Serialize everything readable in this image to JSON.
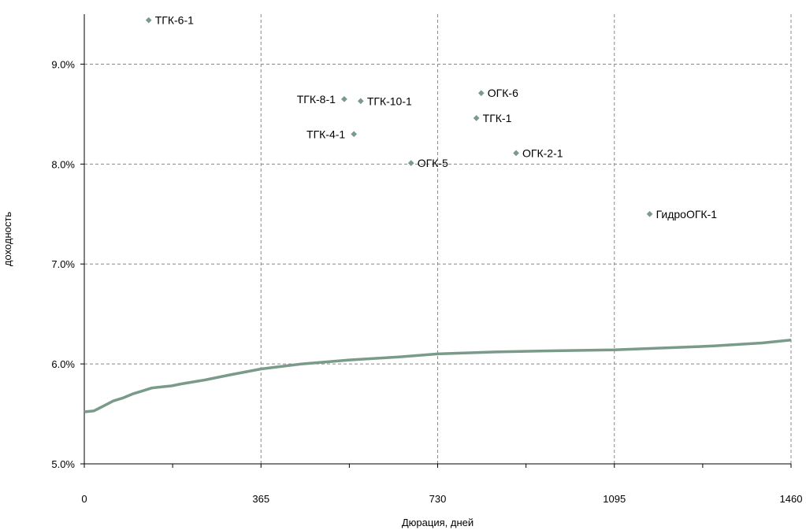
{
  "chart_data": {
    "type": "scatter",
    "title": "",
    "xlabel": "Дюрация, дней",
    "ylabel": "доходность",
    "xlim": [
      0,
      1460
    ],
    "ylim": [
      0.05,
      0.095
    ],
    "x_ticks": [
      0,
      365,
      730,
      1095,
      1460
    ],
    "x_tick_labels": [
      "0",
      "365",
      "730",
      "1095",
      "1460"
    ],
    "y_ticks": [
      0.05,
      0.06,
      0.07,
      0.08,
      0.09
    ],
    "y_tick_labels": [
      "5.0%",
      "6.0%",
      "7.0%",
      "8.0%",
      "9.0%"
    ],
    "grid": true,
    "grid_style": "dashed",
    "colors": {
      "marker": "#7a9a8a",
      "curve": "#7a9a8a",
      "grid": "#888888",
      "axis": "#000000"
    },
    "points": [
      {
        "label": "ТГК-6-1",
        "x": 133,
        "y": 0.0944,
        "label_side": "right"
      },
      {
        "label": "ТГК-8-1",
        "x": 537,
        "y": 0.0865,
        "label_side": "left"
      },
      {
        "label": "ТГК-10-1",
        "x": 571,
        "y": 0.0863,
        "label_side": "right"
      },
      {
        "label": "ТГК-4-1",
        "x": 557,
        "y": 0.083,
        "label_side": "left"
      },
      {
        "label": "ОГК-6",
        "x": 820,
        "y": 0.0871,
        "label_side": "right"
      },
      {
        "label": "ТГК-1",
        "x": 810,
        "y": 0.0846,
        "label_side": "right"
      },
      {
        "label": "ОГК-5",
        "x": 675,
        "y": 0.0801,
        "label_side": "right"
      },
      {
        "label": "ОГК-2-1",
        "x": 892,
        "y": 0.0811,
        "label_side": "right"
      },
      {
        "label": "ГидроОГК-1",
        "x": 1168,
        "y": 0.075,
        "label_side": "right"
      }
    ],
    "curve": {
      "x": [
        0,
        20,
        40,
        60,
        80,
        100,
        120,
        140,
        160,
        180,
        200,
        250,
        300,
        365,
        450,
        550,
        650,
        730,
        850,
        950,
        1095,
        1200,
        1300,
        1400,
        1460
      ],
      "y": [
        0.0552,
        0.0553,
        0.0558,
        0.0563,
        0.0566,
        0.057,
        0.0573,
        0.0576,
        0.0577,
        0.0578,
        0.058,
        0.0584,
        0.0589,
        0.0595,
        0.06,
        0.0604,
        0.0607,
        0.061,
        0.0612,
        0.0613,
        0.0614,
        0.0616,
        0.0618,
        0.0621,
        0.0624
      ]
    }
  }
}
